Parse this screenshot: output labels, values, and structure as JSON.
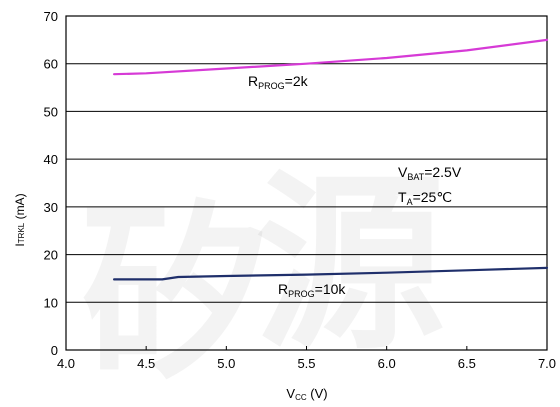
{
  "chart_data": {
    "type": "line",
    "xlabel": {
      "main": "V",
      "sub": "CC",
      "unit": " (V)"
    },
    "ylabel": {
      "main": "I",
      "sub": "TRKL",
      "unit": " (mA)"
    },
    "xlim": [
      4.0,
      7.0
    ],
    "ylim": [
      0,
      70
    ],
    "x_ticks": [
      4.0,
      4.5,
      5.0,
      5.5,
      6.0,
      6.5,
      7.0
    ],
    "x_tick_labels": [
      "4.0",
      "4.5",
      "5.0",
      "5.5",
      "6.0",
      "6.5",
      "7.0"
    ],
    "y_ticks": [
      0,
      10,
      20,
      30,
      40,
      50,
      60,
      70
    ],
    "y_tick_labels": [
      "0",
      "10",
      "20",
      "30",
      "40",
      "50",
      "60",
      "70"
    ],
    "grid": "horizontal",
    "series": [
      {
        "label": {
          "main": "R",
          "sub": "PROG",
          "rest": "=2k"
        },
        "color": "#d63ad6",
        "x": [
          4.3,
          4.5,
          5.0,
          5.5,
          6.0,
          6.5,
          7.0
        ],
        "y": [
          57.8,
          58.0,
          59.0,
          60.0,
          61.2,
          62.8,
          65.0
        ]
      },
      {
        "label": {
          "main": "R",
          "sub": "PROG",
          "rest": "=10k"
        },
        "color": "#1f2f6b",
        "x": [
          4.3,
          4.6,
          4.7,
          5.0,
          5.5,
          6.0,
          6.5,
          7.0
        ],
        "y": [
          14.8,
          14.8,
          15.3,
          15.5,
          15.8,
          16.2,
          16.7,
          17.2
        ]
      }
    ],
    "annotations": [
      {
        "main": "V",
        "sub": "BAT",
        "rest": "=2.5V"
      },
      {
        "main": "T",
        "sub": "A",
        "rest": "=25℃"
      }
    ]
  },
  "watermark": [
    "矽",
    "源"
  ]
}
